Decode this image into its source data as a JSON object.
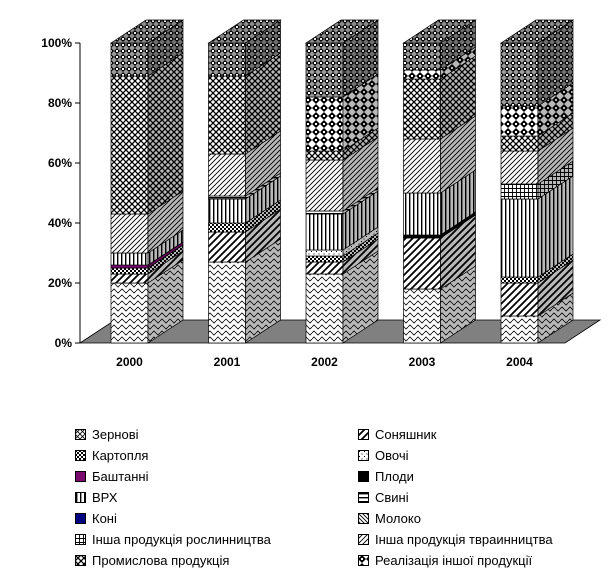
{
  "chart_data": {
    "type": "bar",
    "stacked": true,
    "percent": true,
    "three_d": true,
    "categories": [
      "2000",
      "2001",
      "2002",
      "2003",
      "2004"
    ],
    "y_ticks": [
      "0%",
      "20%",
      "40%",
      "60%",
      "80%",
      "100%"
    ],
    "ylim": [
      0,
      100
    ],
    "legend_position": "bottom",
    "series": [
      {
        "name": "Зернові",
        "pattern": "waves",
        "values": [
          20,
          27,
          23,
          18,
          9
        ]
      },
      {
        "name": "Соняшник",
        "pattern": "diag-wide",
        "values": [
          3,
          10,
          4,
          17,
          11
        ]
      },
      {
        "name": "Картопля",
        "pattern": "checker",
        "values": [
          2,
          3,
          2,
          0,
          2
        ]
      },
      {
        "name": "Овочі",
        "pattern": "dots",
        "values": [
          0,
          0,
          2,
          0,
          0
        ]
      },
      {
        "name": "Баштанні",
        "pattern": "solid-purple",
        "values": [
          1,
          0,
          0,
          0,
          0
        ]
      },
      {
        "name": "Плоди",
        "pattern": "solid-black",
        "values": [
          0,
          0,
          0,
          1,
          0
        ]
      },
      {
        "name": "ВРХ",
        "pattern": "vertical",
        "values": [
          4,
          8,
          12,
          14,
          26
        ]
      },
      {
        "name": "Свині",
        "pattern": "horizontal",
        "values": [
          0,
          1,
          1,
          0,
          0
        ]
      },
      {
        "name": "Коні",
        "pattern": "solid-navy",
        "values": [
          0,
          0,
          0,
          0,
          0
        ]
      },
      {
        "name": "Молоко",
        "pattern": "diag-fine",
        "values": [
          0,
          0,
          0,
          0,
          0
        ]
      },
      {
        "name": "Інша продукція рослинництва",
        "pattern": "grid",
        "values": [
          0,
          0,
          0,
          0,
          5
        ]
      },
      {
        "name": "Інша продукція тваринництва",
        "pattern": "diag-thin",
        "values": [
          13,
          14,
          17,
          18,
          11
        ]
      },
      {
        "name": "Промислова продукція",
        "pattern": "cross",
        "values": [
          46,
          26,
          3,
          20,
          5
        ]
      },
      {
        "name": "Реалізація іншої продукції",
        "pattern": "confetti",
        "values": [
          0,
          0,
          18,
          3,
          10
        ]
      },
      {
        "name": "",
        "pattern": "diamond-dark",
        "values": [
          11,
          11,
          18,
          9,
          21
        ]
      }
    ],
    "legend_labels": [
      [
        "Зернові",
        "Соняшник"
      ],
      [
        "Картопля",
        "Овочі"
      ],
      [
        "Баштанні",
        "Плоди"
      ],
      [
        "ВРХ",
        "Свині"
      ],
      [
        "Коні",
        "Молоко"
      ],
      [
        "Інша продукція рослинництва",
        "Інша продукція твраинництва"
      ],
      [
        "Промислова продукція",
        "Реалізація іншої продукції"
      ]
    ],
    "legend_patterns": [
      [
        "diag-grid",
        "diag-wide"
      ],
      [
        "checker",
        "dots"
      ],
      [
        "solid-purple",
        "solid-black"
      ],
      [
        "vertical",
        "horizontal"
      ],
      [
        "solid-navy",
        "diag-fine"
      ],
      [
        "grid",
        "diag-thin"
      ],
      [
        "cross",
        "confetti"
      ]
    ],
    "colors": {
      "floor": "#808080",
      "purple": "#7a0a6e",
      "navy": "#000080"
    }
  }
}
